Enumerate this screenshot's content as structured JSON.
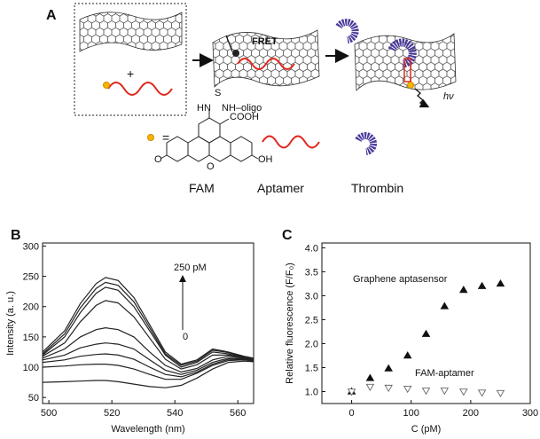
{
  "panel_a": {
    "label": "A",
    "plus": "+",
    "fret": "FRET",
    "hv": "hν",
    "equals": "=",
    "fam": "FAM",
    "aptamer": "Aptamer",
    "thrombin": "Thrombin",
    "chem": [
      "S",
      "HN",
      "NH–oligo",
      "COOH",
      "O",
      "O",
      "OH"
    ]
  },
  "chart_data": [
    {
      "type": "line",
      "label": "B",
      "x_label": "Wavelength (nm)",
      "y_label": "Intensity (a. u.)",
      "color": "#222222",
      "annotations": [
        "250 pM",
        "0"
      ],
      "x": [
        498,
        505,
        510,
        515,
        518,
        522,
        527,
        532,
        537,
        542,
        547,
        552,
        557,
        562,
        565
      ],
      "series": [
        {
          "values": [
            125,
            160,
            205,
            238,
            248,
            243,
            215,
            170,
            125,
            105,
            112,
            130,
            125,
            118,
            115
          ]
        },
        {
          "values": [
            122,
            155,
            198,
            230,
            240,
            235,
            208,
            165,
            122,
            103,
            110,
            128,
            124,
            117,
            114
          ]
        },
        {
          "values": [
            120,
            150,
            190,
            222,
            232,
            227,
            200,
            160,
            120,
            100,
            108,
            125,
            122,
            116,
            113
          ]
        },
        {
          "values": [
            118,
            140,
            175,
            202,
            210,
            206,
            183,
            148,
            113,
            97,
            104,
            120,
            120,
            115,
            112
          ]
        },
        {
          "values": [
            115,
            130,
            150,
            162,
            165,
            162,
            150,
            125,
            103,
            92,
            98,
            112,
            118,
            115,
            112
          ]
        },
        {
          "values": [
            112,
            120,
            132,
            138,
            140,
            138,
            130,
            112,
            95,
            88,
            95,
            108,
            115,
            114,
            111
          ]
        },
        {
          "values": [
            108,
            112,
            118,
            121,
            122,
            120,
            113,
            100,
            88,
            84,
            92,
            105,
            113,
            113,
            110
          ]
        },
        {
          "values": [
            100,
            102,
            104,
            105,
            105,
            103,
            97,
            88,
            80,
            80,
            90,
            103,
            111,
            112,
            110
          ]
        },
        {
          "values": [
            75,
            76,
            77,
            78,
            78,
            76,
            72,
            68,
            66,
            70,
            82,
            97,
            108,
            110,
            109
          ]
        }
      ],
      "xlim": [
        498,
        565
      ],
      "xticks": [
        500,
        520,
        540,
        560
      ],
      "ylim": [
        40,
        305
      ],
      "yticks": [
        50,
        100,
        150,
        200,
        250,
        300
      ]
    },
    {
      "type": "scatter",
      "label": "C",
      "x_label": "C (pM)",
      "y_label": "Relative fluorescence (F/F₀)",
      "x": [
        0,
        31,
        62,
        94,
        125,
        156,
        188,
        219,
        250
      ],
      "series": [
        {
          "name": "Graphene aptasensor",
          "color": "#111111",
          "marker": "up",
          "filled": true,
          "values": [
            1.0,
            1.28,
            1.48,
            1.75,
            2.2,
            2.78,
            3.12,
            3.2,
            3.25
          ]
        },
        {
          "name": "FAM-aptamer",
          "color": "#666666",
          "marker": "down",
          "filled": false,
          "values": [
            1.0,
            1.1,
            1.08,
            1.06,
            1.02,
            1.02,
            1.0,
            0.98,
            0.97
          ]
        }
      ],
      "xlim": [
        -50,
        300
      ],
      "xticks": [
        0,
        100,
        200,
        300
      ],
      "ylim": [
        0.75,
        4.1
      ],
      "yticks": [
        {
          "value": 1,
          "label": "1.0"
        },
        1.5,
        {
          "value": 2,
          "label": "2.0"
        },
        2.5,
        {
          "value": 3,
          "label": "3.0"
        },
        3.5,
        {
          "value": 4,
          "label": "4.0"
        }
      ]
    }
  ]
}
